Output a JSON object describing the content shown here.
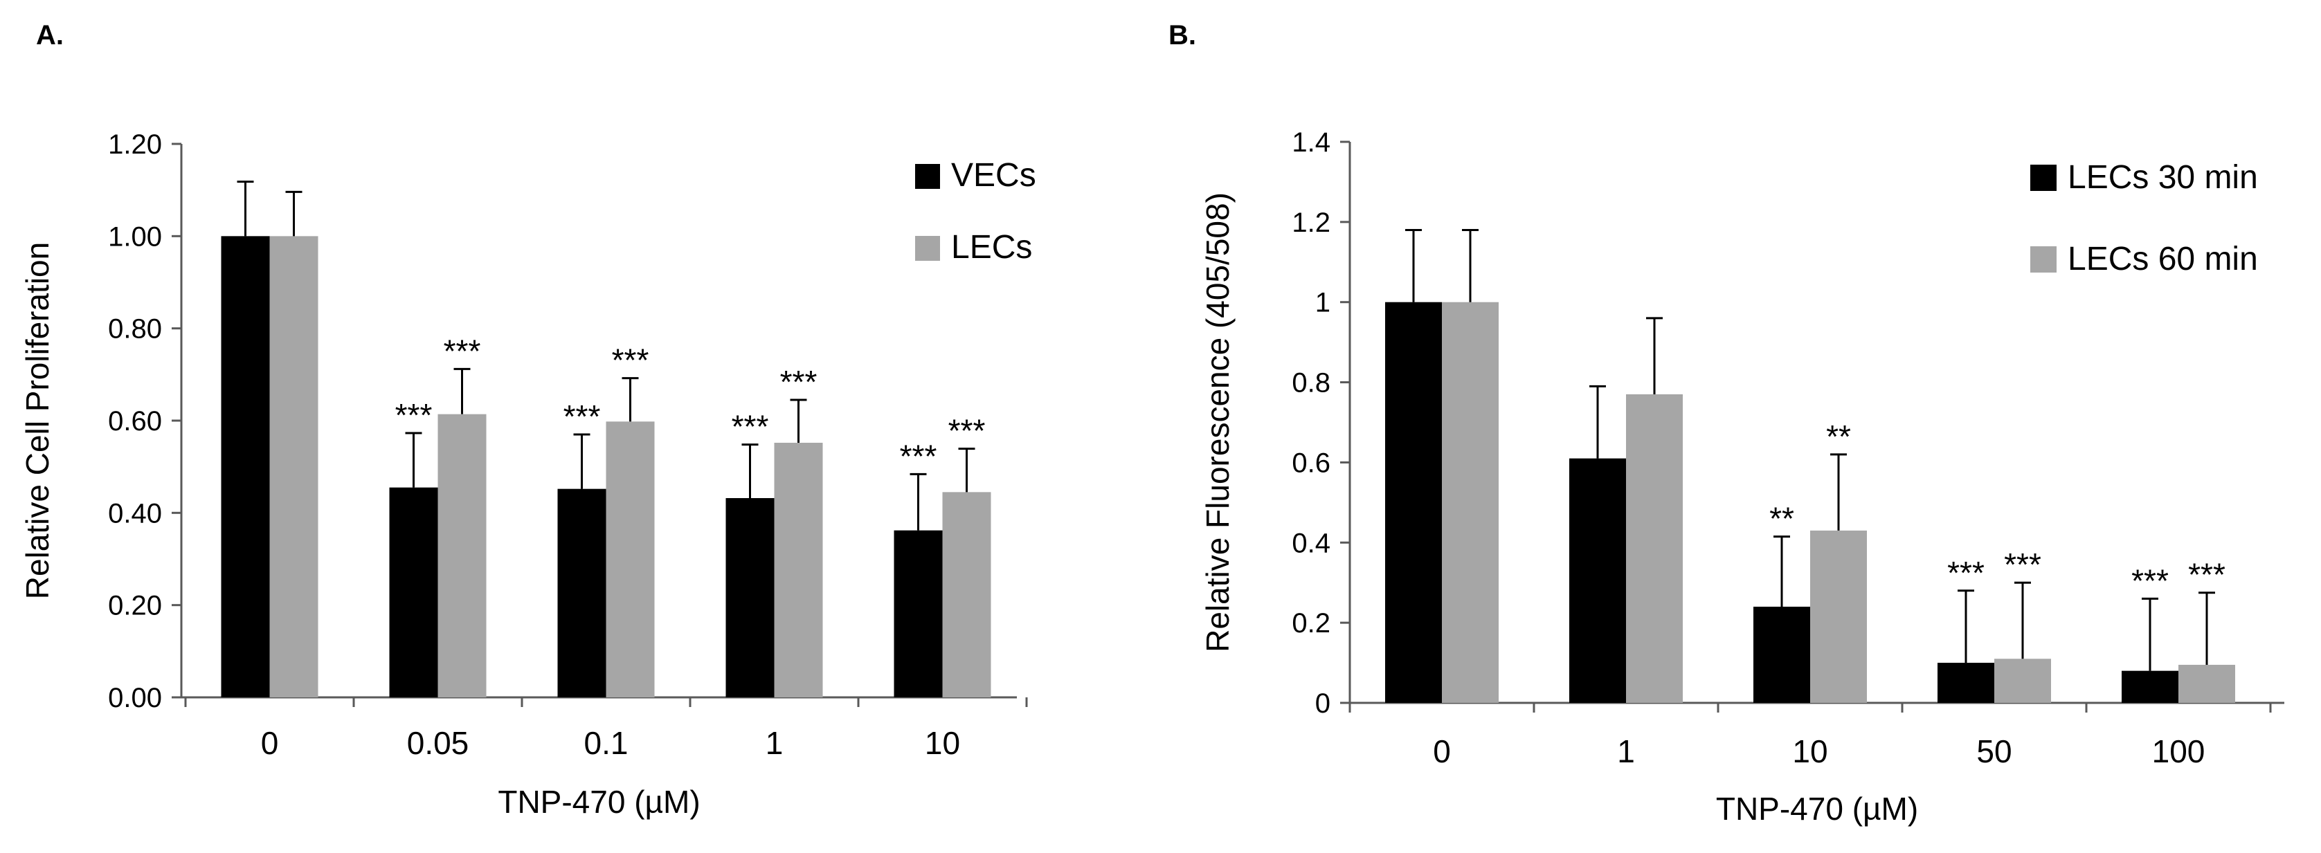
{
  "chart_data": [
    {
      "panel_label": "A.",
      "type": "bar",
      "xlabel": "TNP-470 (µM)",
      "ylabel": "Relative Cell Proliferation",
      "ylim": [
        0,
        1.2
      ],
      "yticks": [
        "0.00",
        "0.20",
        "0.40",
        "0.60",
        "0.80",
        "1.00",
        "1.20"
      ],
      "categories": [
        "0",
        "0.05",
        "0.1",
        "1",
        "10"
      ],
      "legend_position": "top-right",
      "series": [
        {
          "name": "VECs",
          "color": "#000000",
          "values": [
            1.0,
            0.455,
            0.452,
            0.432,
            0.362
          ],
          "errors": [
            0.118,
            0.118,
            0.118,
            0.116,
            0.122
          ],
          "significance": [
            "",
            "***",
            "***",
            "***",
            "***"
          ]
        },
        {
          "name": "LECs",
          "color": "#a6a6a6",
          "values": [
            1.0,
            0.614,
            0.598,
            0.552,
            0.445
          ],
          "errors": [
            0.096,
            0.098,
            0.094,
            0.093,
            0.094
          ],
          "significance": [
            "",
            "***",
            "***",
            "***",
            "***"
          ]
        }
      ]
    },
    {
      "panel_label": "B.",
      "type": "bar",
      "xlabel": "TNP-470 (µM)",
      "ylabel": "Relative Fluorescence (405/508)",
      "ylim": [
        0,
        1.4
      ],
      "yticks": [
        "0",
        "0.2",
        "0.4",
        "0.6",
        "0.8",
        "1",
        "1.2",
        "1.4"
      ],
      "categories": [
        "0",
        "1",
        "10",
        "50",
        "100"
      ],
      "legend_position": "top-right",
      "series": [
        {
          "name": "LECs 30 min",
          "color": "#000000",
          "values": [
            1.0,
            0.61,
            0.24,
            0.1,
            0.08
          ],
          "errors": [
            0.18,
            0.18,
            0.175,
            0.18,
            0.18
          ],
          "significance": [
            "",
            "",
            "**",
            "***",
            "***"
          ]
        },
        {
          "name": "LECs 60 min",
          "color": "#a6a6a6",
          "values": [
            1.0,
            0.77,
            0.43,
            0.11,
            0.095
          ],
          "errors": [
            0.18,
            0.19,
            0.19,
            0.19,
            0.18
          ],
          "significance": [
            "",
            "",
            "**",
            "***",
            "***"
          ]
        }
      ]
    }
  ]
}
